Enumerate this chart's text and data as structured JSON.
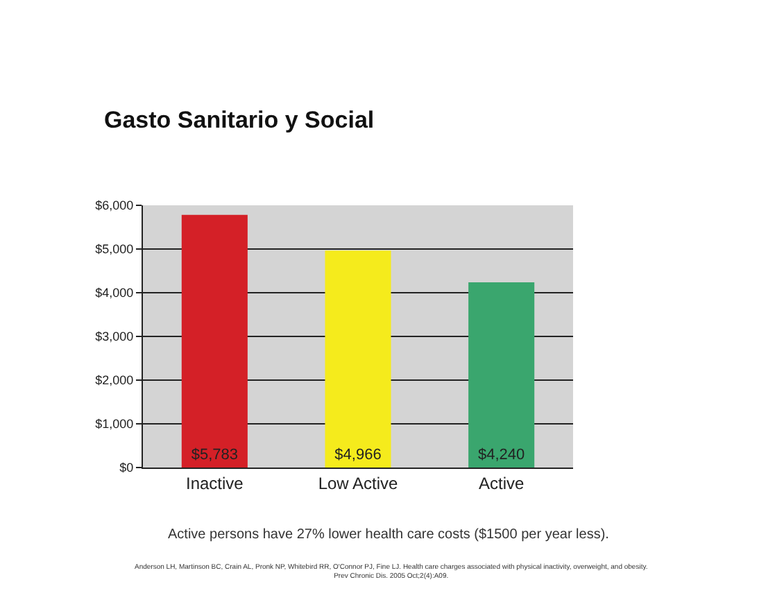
{
  "chart_data": {
    "type": "bar",
    "title": "Gasto Sanitario y Social",
    "categories": [
      "Inactive",
      "Low Active",
      "Active"
    ],
    "values": [
      5783,
      4966,
      4240
    ],
    "colors": [
      "#d42027",
      "#f5eb1c",
      "#3aa66e"
    ],
    "value_labels": [
      "$5,783",
      "$4,966",
      "$4,240"
    ],
    "ylim": [
      0,
      6000
    ],
    "yticks": [
      {
        "value": 0,
        "label": "$0"
      },
      {
        "value": 1000,
        "label": "$1,000"
      },
      {
        "value": 2000,
        "label": "$2,000"
      },
      {
        "value": 3000,
        "label": "$3,000"
      },
      {
        "value": 4000,
        "label": "$4,000"
      },
      {
        "value": 5000,
        "label": "$5,000"
      },
      {
        "value": 6000,
        "label": "$6,000"
      }
    ],
    "grid": "y",
    "legend": false,
    "annotations": [
      "Active persons have 27% lower health care costs ($1500 per year less).",
      "Anderson LH, Martinson BC, Crain AL, Pronk NP, Whitebird RR, O'Connor PJ, Fine LJ. Health care charges associated with physical inactivity, overweight, and obesity.\nPrev Chronic Dis. 2005 Oct;2(4):A09."
    ]
  }
}
